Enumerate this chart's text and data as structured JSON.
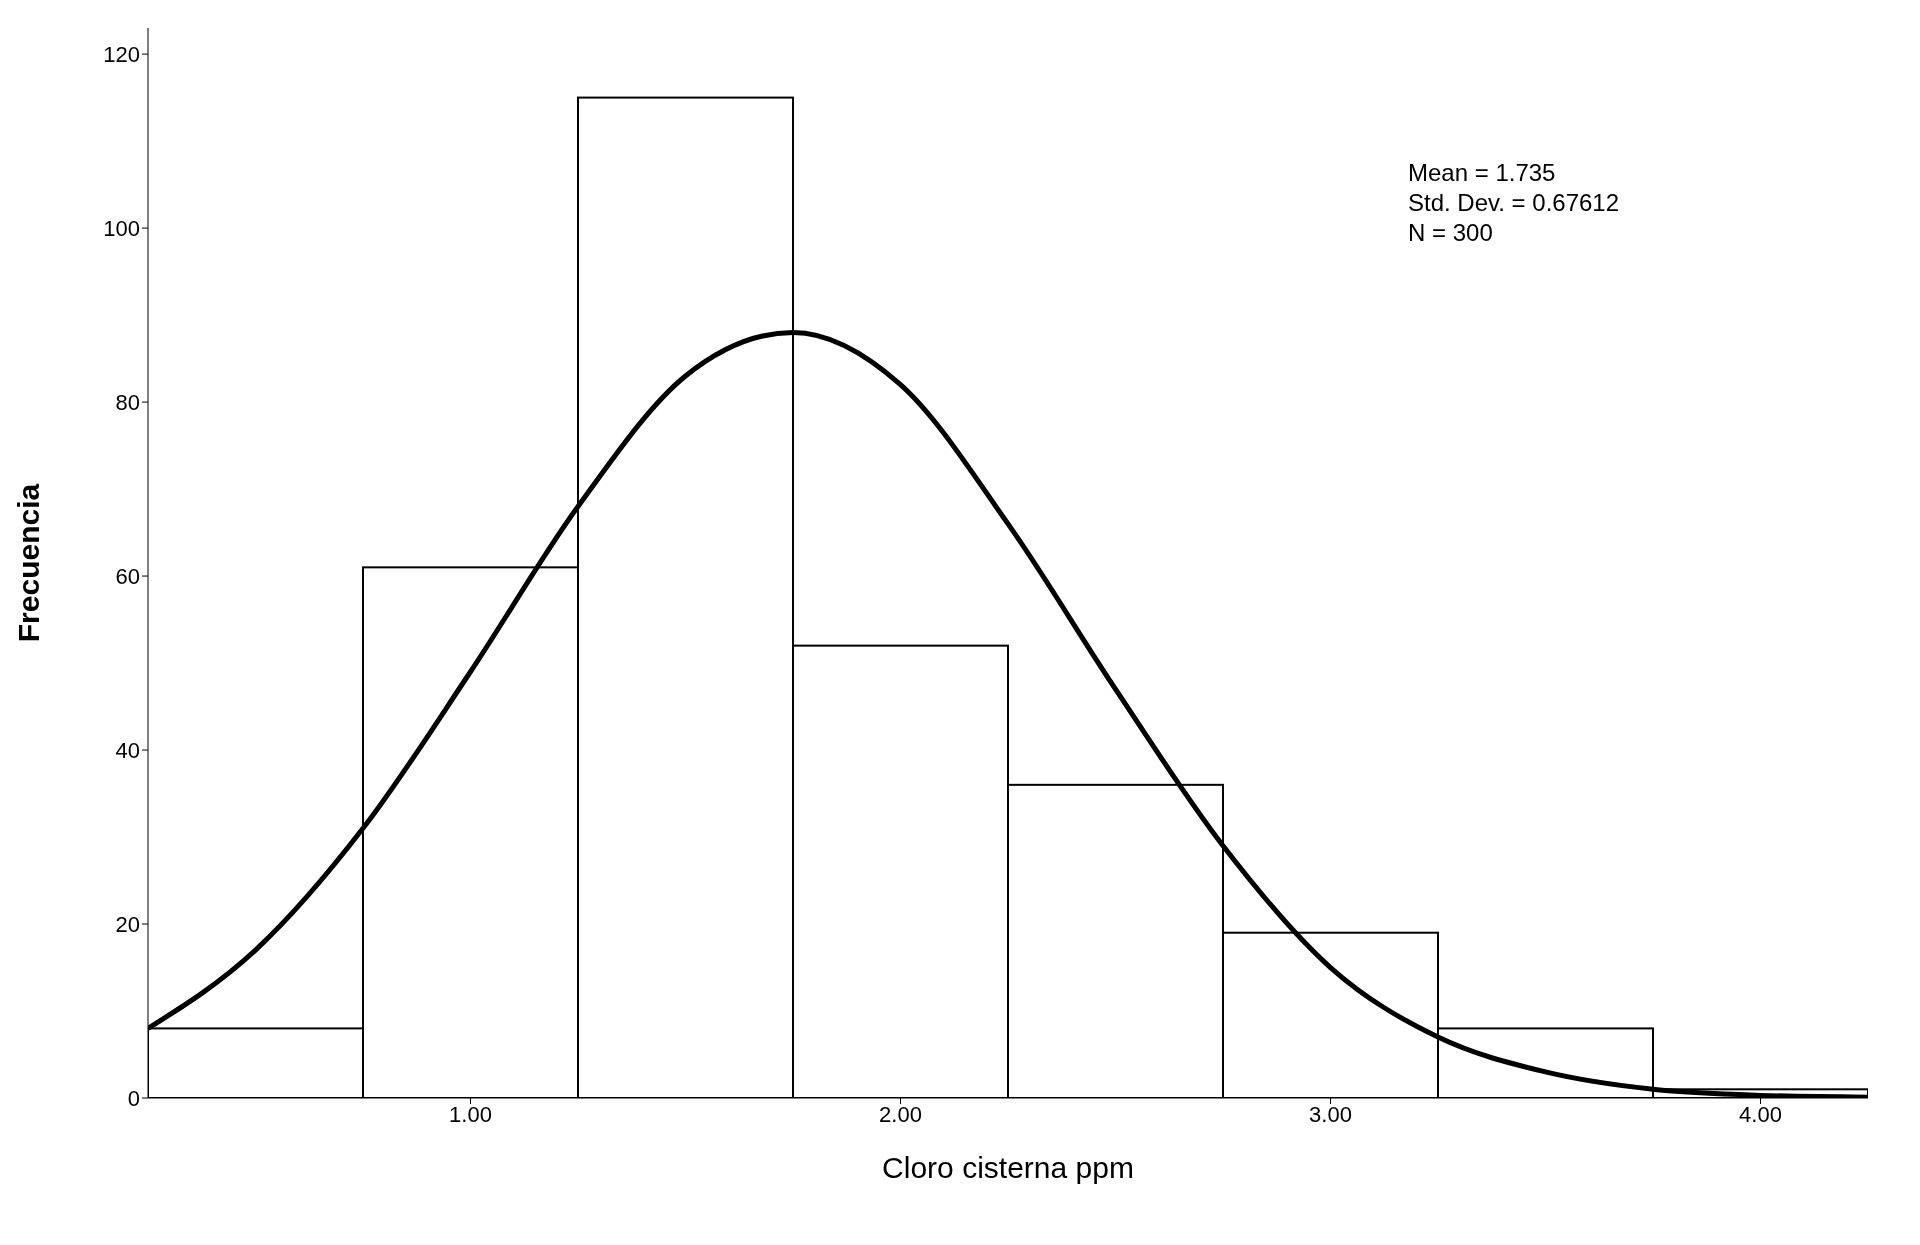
{
  "chart_data": {
    "type": "histogram",
    "xlabel": "Cloro cisterna ppm",
    "ylabel": "Frecuencia",
    "bins": [
      0.25,
      0.75,
      1.25,
      1.75,
      2.25,
      2.75,
      3.25,
      3.75,
      4.25
    ],
    "values": [
      8,
      61,
      115,
      52,
      36,
      19,
      8,
      1
    ],
    "color": "#ffffff",
    "xlim": [
      0.25,
      4.25
    ],
    "xticks": [
      {
        "value": 1,
        "label": "1.00"
      },
      {
        "value": 2,
        "label": "2.00"
      },
      {
        "value": 3,
        "label": "3.00"
      },
      {
        "value": 4,
        "label": "4.00"
      }
    ],
    "ylim": [
      0,
      123
    ],
    "yticks": [
      0,
      20,
      40,
      60,
      80,
      100,
      120
    ],
    "series": [
      {
        "type": "line",
        "color": "#000000",
        "marker": "none",
        "line_style": "solid",
        "x": [
          0.25,
          0.5,
          0.75,
          1.0,
          1.25,
          1.5,
          1.75,
          2.0,
          2.25,
          2.5,
          2.75,
          3.0,
          3.25,
          3.5,
          3.75,
          4.0,
          4.25
        ],
        "values": [
          8,
          17,
          31,
          49,
          68,
          83,
          88,
          82,
          66,
          47,
          29,
          15,
          7,
          3,
          1,
          0.3,
          0.1
        ]
      }
    ],
    "annotations": [
      "Mean = 1.735",
      "Std. Dev. = 0.67612",
      "N = 300"
    ]
  }
}
